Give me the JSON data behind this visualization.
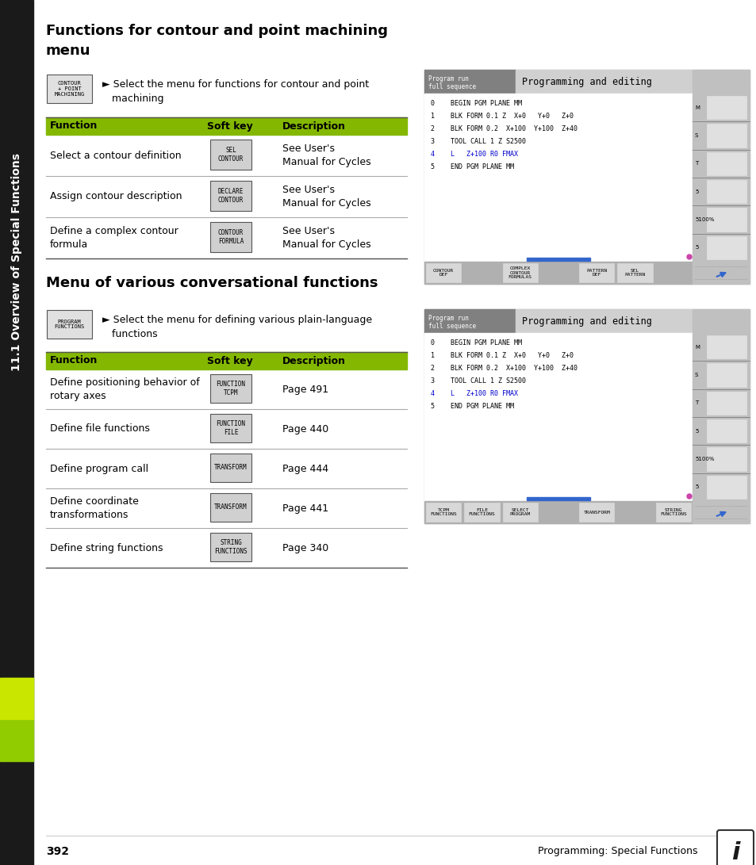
{
  "page_bg": "#ffffff",
  "sidebar_bg": "#1a1a1a",
  "sidebar_text": "11.1 Overview of Special Functions",
  "sidebar_green_color": "#7dc400",
  "section1_title": "Functions for contour and point machining\nmenu",
  "section1_intro_key": "CONTOUR\n+ POINT\nMACHINING",
  "section1_intro_text": "► Select the menu for functions for contour and point\n   machining",
  "table1_header": [
    "Function",
    "Soft key",
    "Description"
  ],
  "table1_rows": [
    [
      "Select a contour definition",
      "SEL\nCONTOUR",
      "See User's\nManual for Cycles"
    ],
    [
      "Assign contour description",
      "DECLARE\nCONTOUR",
      "See User's\nManual for Cycles"
    ],
    [
      "Define a complex contour\nformula",
      "CONTOUR\nFORMULA",
      "See User's\nManual for Cycles"
    ]
  ],
  "section2_title": "Menu of various conversational functions",
  "section2_intro_key": "PROGRAM\nFUNCTIONS",
  "section2_intro_text": "► Select the menu for defining various plain-language\n   functions",
  "table2_header": [
    "Function",
    "Soft key",
    "Description"
  ],
  "table2_rows": [
    [
      "Define positioning behavior of\nrotary axes",
      "FUNCTION\nTCPM",
      "Page 491"
    ],
    [
      "Define file functions",
      "FUNCTION\nFILE",
      "Page 440"
    ],
    [
      "Define program call",
      "TRANSFORM",
      "Page 444"
    ],
    [
      "Define coordinate\ntransformations",
      "TRANSFORM",
      "Page 441"
    ],
    [
      "Define string functions",
      "STRING\nFUNCTIONS",
      "Page 340"
    ]
  ],
  "header_bg": "#84b800",
  "table_line_color": "#aaaaaa",
  "page_number": "392",
  "footer_text": "Programming: Special Functions",
  "screen1_softkeys": [
    "CONTOUR\nDEF",
    "",
    "COMPLEX\nCONTOUR\nFORMULAS",
    "",
    "PATTERN\nDEF",
    "SEL\nPATTERN",
    ""
  ],
  "screen2_softkeys": [
    "TCPM\nFUNCTIONS",
    "FILE\nFUNCTIONS",
    "SELECT\nPROGRAM",
    "",
    "TRANSFORM",
    "",
    "STRING\nFUNCTIONS"
  ],
  "code_lines": [
    "0    BEGIN PGM PLANE MM",
    "1    BLK FORM 0.1 Z  X+0   Y+0   Z+0",
    "2    BLK FORM 0.2  X+100  Y+100  Z+40",
    "3    TOOL CALL 1 Z S2500",
    "4    L   Z+100 R0 FMAX",
    "5    END PGM PLANE MM"
  ],
  "highlight_line": 4
}
